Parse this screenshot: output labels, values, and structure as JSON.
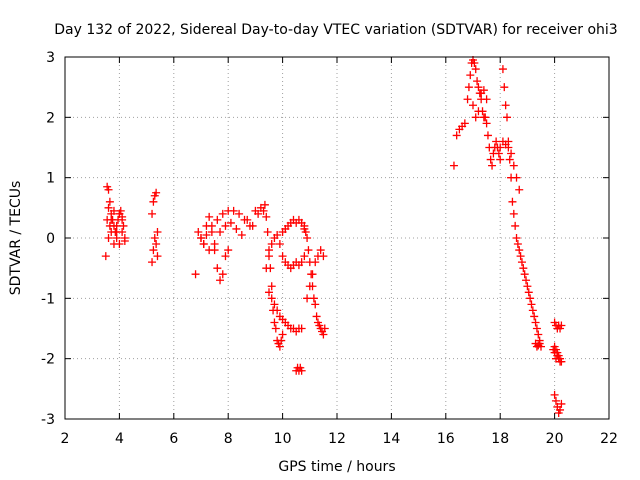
{
  "chart_data": {
    "type": "scatter",
    "title": "Day 132 of 2022, Sidereal Day-to-day VTEC variation (SDTVAR) for receiver ohi3",
    "xlabel": "GPS time / hours",
    "ylabel": "SDTVAR / TECUs",
    "xlim": [
      2,
      22
    ],
    "ylim": [
      -3,
      3
    ],
    "xticks": [
      2,
      4,
      6,
      8,
      10,
      12,
      14,
      16,
      18,
      20,
      22
    ],
    "yticks": [
      -3,
      -2,
      -1,
      0,
      1,
      2,
      3
    ],
    "grid": true,
    "marker": "+",
    "color": "#ff0000",
    "series": [
      {
        "name": "SDTVAR",
        "x": [
          3.5,
          3.55,
          3.6,
          3.65,
          3.7,
          3.75,
          3.8,
          3.85,
          3.9,
          3.95,
          4.0,
          4.05,
          4.1,
          4.15,
          4.2,
          3.55,
          3.6,
          3.65,
          3.7,
          3.8,
          3.9,
          4.0,
          4.1,
          4.2,
          3.6,
          3.7,
          3.8,
          3.9,
          4.0,
          4.1,
          5.2,
          5.25,
          5.3,
          5.35,
          5.4,
          5.2,
          5.25,
          5.3,
          5.35,
          5.4,
          6.8,
          6.9,
          7.0,
          7.1,
          7.2,
          7.3,
          7.4,
          7.5,
          7.6,
          7.7,
          7.8,
          7.9,
          8.0,
          7.0,
          7.2,
          7.4,
          7.6,
          7.8,
          8.0,
          8.2,
          8.4,
          8.6,
          8.8,
          9.0,
          9.2,
          7.1,
          7.3,
          7.5,
          7.7,
          7.9,
          8.1,
          8.3,
          8.5,
          8.7,
          8.9,
          9.1,
          9.3,
          9.35,
          9.4,
          9.45,
          9.5,
          9.55,
          9.6,
          9.65,
          9.7,
          9.75,
          9.8,
          9.85,
          9.9,
          9.95,
          10.0,
          9.4,
          9.5,
          9.6,
          9.7,
          9.8,
          9.9,
          10.0,
          10.1,
          10.2,
          10.3,
          10.4,
          10.5,
          10.6,
          10.7,
          10.8,
          9.5,
          9.6,
          9.7,
          9.8,
          9.9,
          10.0,
          10.1,
          10.2,
          10.3,
          10.4,
          10.5,
          10.6,
          10.7,
          10.0,
          10.1,
          10.2,
          10.3,
          10.4,
          10.5,
          10.6,
          10.7,
          10.8,
          10.5,
          10.55,
          10.6,
          10.65,
          10.7,
          10.8,
          10.85,
          10.9,
          10.95,
          11.0,
          11.05,
          11.1,
          11.15,
          11.2,
          11.25,
          11.3,
          11.35,
          11.4,
          11.45,
          11.5,
          11.55,
          10.9,
          11.0,
          11.1,
          11.2,
          11.3,
          11.4,
          11.5,
          16.3,
          16.4,
          16.5,
          16.6,
          16.7,
          16.8,
          16.85,
          16.9,
          16.95,
          17.0,
          17.05,
          17.1,
          17.15,
          17.2,
          17.25,
          17.3,
          17.35,
          17.4,
          17.45,
          17.5,
          17.55,
          17.6,
          17.65,
          17.7,
          17.75,
          17.8,
          17.85,
          17.9,
          17.95,
          18.0,
          17.0,
          17.1,
          17.2,
          17.3,
          17.4,
          17.5,
          18.1,
          18.15,
          18.2,
          18.25,
          18.3,
          18.35,
          18.4,
          18.45,
          18.5,
          18.55,
          18.6,
          18.65,
          18.7,
          18.75,
          18.8,
          18.85,
          18.9,
          18.95,
          19.0,
          19.05,
          19.1,
          19.15,
          19.2,
          19.25,
          19.3,
          19.35,
          19.4,
          19.45,
          19.5,
          18.0,
          18.1,
          18.2,
          18.3,
          18.4,
          18.5,
          18.6,
          18.7,
          19.3,
          19.35,
          19.4,
          19.45,
          20.0,
          20.05,
          20.1,
          20.15,
          20.2,
          20.25,
          20.0,
          20.05,
          20.1,
          20.15,
          20.2,
          20.25,
          20.0,
          20.05,
          20.1,
          20.15,
          20.2,
          20.25,
          19.95,
          20.0,
          20.05,
          20.1,
          20.15,
          20.2
        ],
        "y": [
          -0.3,
          0.85,
          0.8,
          0.6,
          0.4,
          0.3,
          0.2,
          0.1,
          0.0,
          0.3,
          0.4,
          0.45,
          0.35,
          0.2,
          0.0,
          0.3,
          0.5,
          0.2,
          0.1,
          -0.1,
          0.2,
          0.4,
          0.1,
          -0.05,
          0.0,
          0.3,
          0.45,
          0.1,
          -0.1,
          0.3,
          0.4,
          0.6,
          0.7,
          0.75,
          0.1,
          -0.4,
          -0.2,
          0.0,
          -0.1,
          -0.3,
          -0.6,
          0.1,
          0.0,
          -0.1,
          0.2,
          0.35,
          0.1,
          -0.2,
          -0.5,
          -0.7,
          -0.6,
          -0.3,
          -0.2,
          0.0,
          0.05,
          0.2,
          0.3,
          0.4,
          0.45,
          0.45,
          0.4,
          0.3,
          0.2,
          0.45,
          0.5,
          -0.1,
          -0.2,
          -0.1,
          0.1,
          0.2,
          0.25,
          0.15,
          0.05,
          0.3,
          0.2,
          0.4,
          0.45,
          0.55,
          0.35,
          0.1,
          -0.2,
          -0.5,
          -0.8,
          -1.2,
          -1.4,
          -1.5,
          -1.7,
          -1.75,
          -1.8,
          -1.7,
          -1.6,
          -0.5,
          -0.3,
          -0.1,
          0.0,
          0.05,
          -0.1,
          -0.3,
          -0.4,
          -0.45,
          -0.5,
          -0.45,
          -0.4,
          -0.45,
          -0.4,
          -0.3,
          -0.9,
          -1.0,
          -1.1,
          -1.2,
          -1.3,
          -1.35,
          -1.4,
          -1.45,
          -1.5,
          -1.5,
          -1.55,
          -1.5,
          -1.5,
          0.1,
          0.15,
          0.2,
          0.25,
          0.3,
          0.25,
          0.3,
          0.25,
          0.2,
          -2.2,
          -2.15,
          -2.2,
          -2.15,
          -2.2,
          0.15,
          0.1,
          0.0,
          -0.2,
          -0.4,
          -0.6,
          -0.8,
          -1.0,
          -1.1,
          -1.3,
          -1.4,
          -1.45,
          -1.5,
          -1.55,
          -1.6,
          -1.5,
          -1.0,
          -0.8,
          -0.6,
          -0.4,
          -0.3,
          -0.2,
          -0.3,
          1.2,
          1.7,
          1.8,
          1.85,
          1.9,
          2.3,
          2.5,
          2.7,
          2.9,
          2.95,
          2.9,
          2.8,
          2.6,
          2.5,
          2.4,
          2.3,
          2.1,
          2.0,
          2.0,
          1.9,
          1.7,
          1.5,
          1.3,
          1.2,
          1.4,
          1.5,
          1.6,
          1.5,
          1.4,
          1.3,
          2.2,
          2.0,
          2.1,
          2.4,
          2.45,
          2.3,
          2.8,
          2.5,
          2.2,
          2.0,
          1.6,
          1.3,
          1.0,
          0.6,
          0.4,
          0.2,
          0.0,
          -0.1,
          -0.2,
          -0.3,
          -0.4,
          -0.5,
          -0.6,
          -0.7,
          -0.8,
          -0.9,
          -1.0,
          -1.1,
          -1.2,
          -1.3,
          -1.4,
          -1.5,
          -1.6,
          -1.7,
          -1.8,
          1.5,
          1.6,
          1.55,
          1.5,
          1.4,
          1.2,
          1.0,
          0.8,
          -1.75,
          -1.8,
          -1.78,
          -1.75,
          -1.4,
          -1.45,
          -1.5,
          -1.45,
          -1.5,
          -1.45,
          -1.8,
          -1.85,
          -1.9,
          -1.95,
          -2.0,
          -2.05,
          -2.6,
          -2.7,
          -2.8,
          -2.9,
          -2.85,
          -2.75,
          -1.85,
          -1.9,
          -2.0,
          -1.95,
          -2.0,
          -2.05
        ]
      }
    ]
  }
}
